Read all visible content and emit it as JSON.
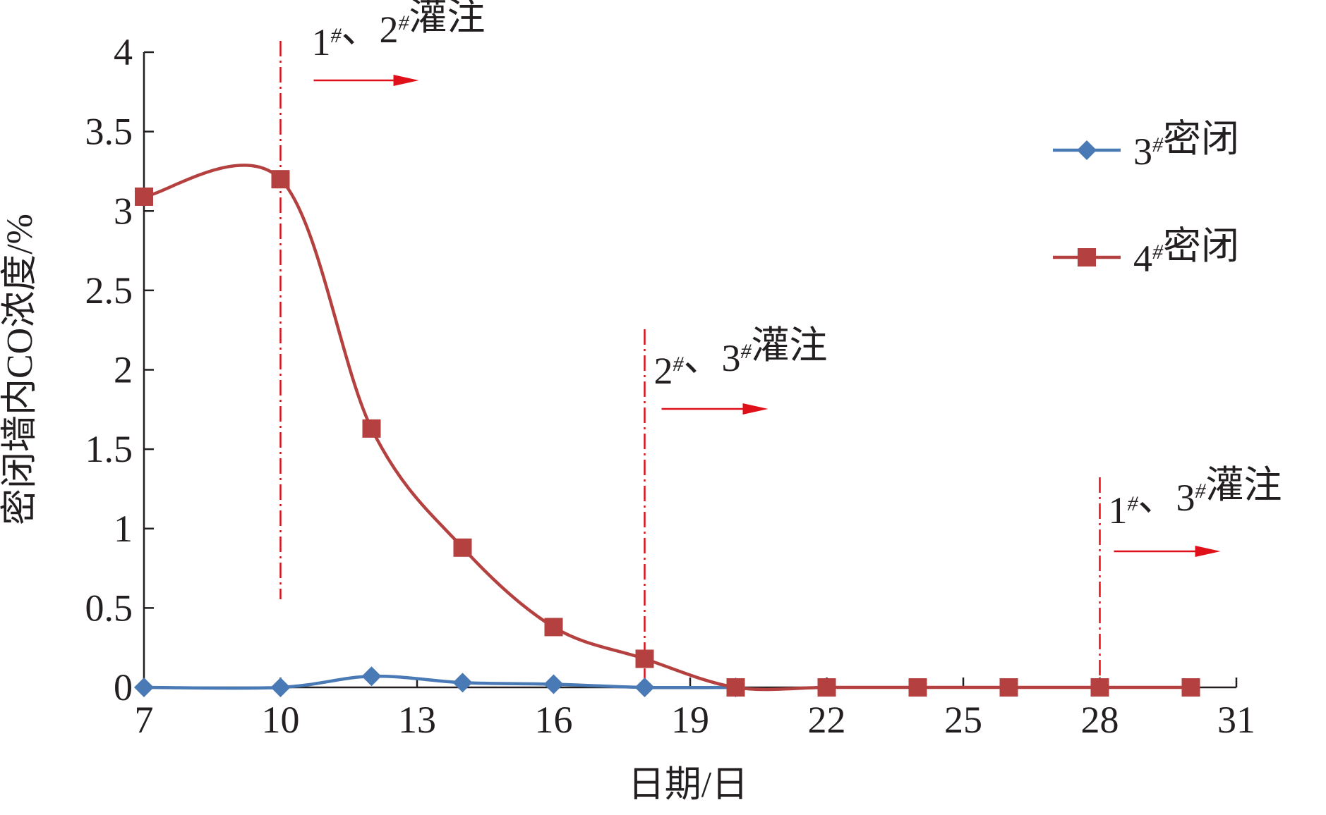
{
  "chart_data": {
    "type": "line",
    "x_label": "日期/日",
    "y_label": "密闭墙内CO浓度/%",
    "xlim": [
      7,
      31
    ],
    "xticks": [
      7,
      10,
      13,
      16,
      19,
      22,
      25,
      28,
      31
    ],
    "ylim": [
      0,
      4
    ],
    "yticks": [
      0,
      0.5,
      1,
      1.5,
      2,
      2.5,
      3,
      3.5,
      4
    ],
    "smooth": true,
    "series": [
      {
        "name": "3#密闭",
        "color": "#4a7ab5",
        "marker": "diamond",
        "x": [
          7,
          10,
          12,
          14,
          16,
          18,
          20
        ],
        "values": [
          0,
          0,
          0.07,
          0.03,
          0.02,
          0,
          0
        ]
      },
      {
        "name": "4#密闭",
        "color": "#b4413f",
        "marker": "square",
        "x": [
          7,
          10,
          12,
          14,
          16,
          18,
          20,
          22,
          24,
          26,
          28,
          30
        ],
        "values": [
          3.09,
          3.2,
          1.63,
          0.88,
          0.38,
          0.18,
          0,
          0,
          0,
          0,
          0,
          0
        ]
      }
    ],
    "annotations": [
      {
        "text": "1#、2#灌注",
        "x": 10
      },
      {
        "text": "2#、3#灌注",
        "x": 18
      },
      {
        "text": "1#、3#灌注",
        "x": 28
      }
    ],
    "annotation_color": "#e0101a"
  }
}
